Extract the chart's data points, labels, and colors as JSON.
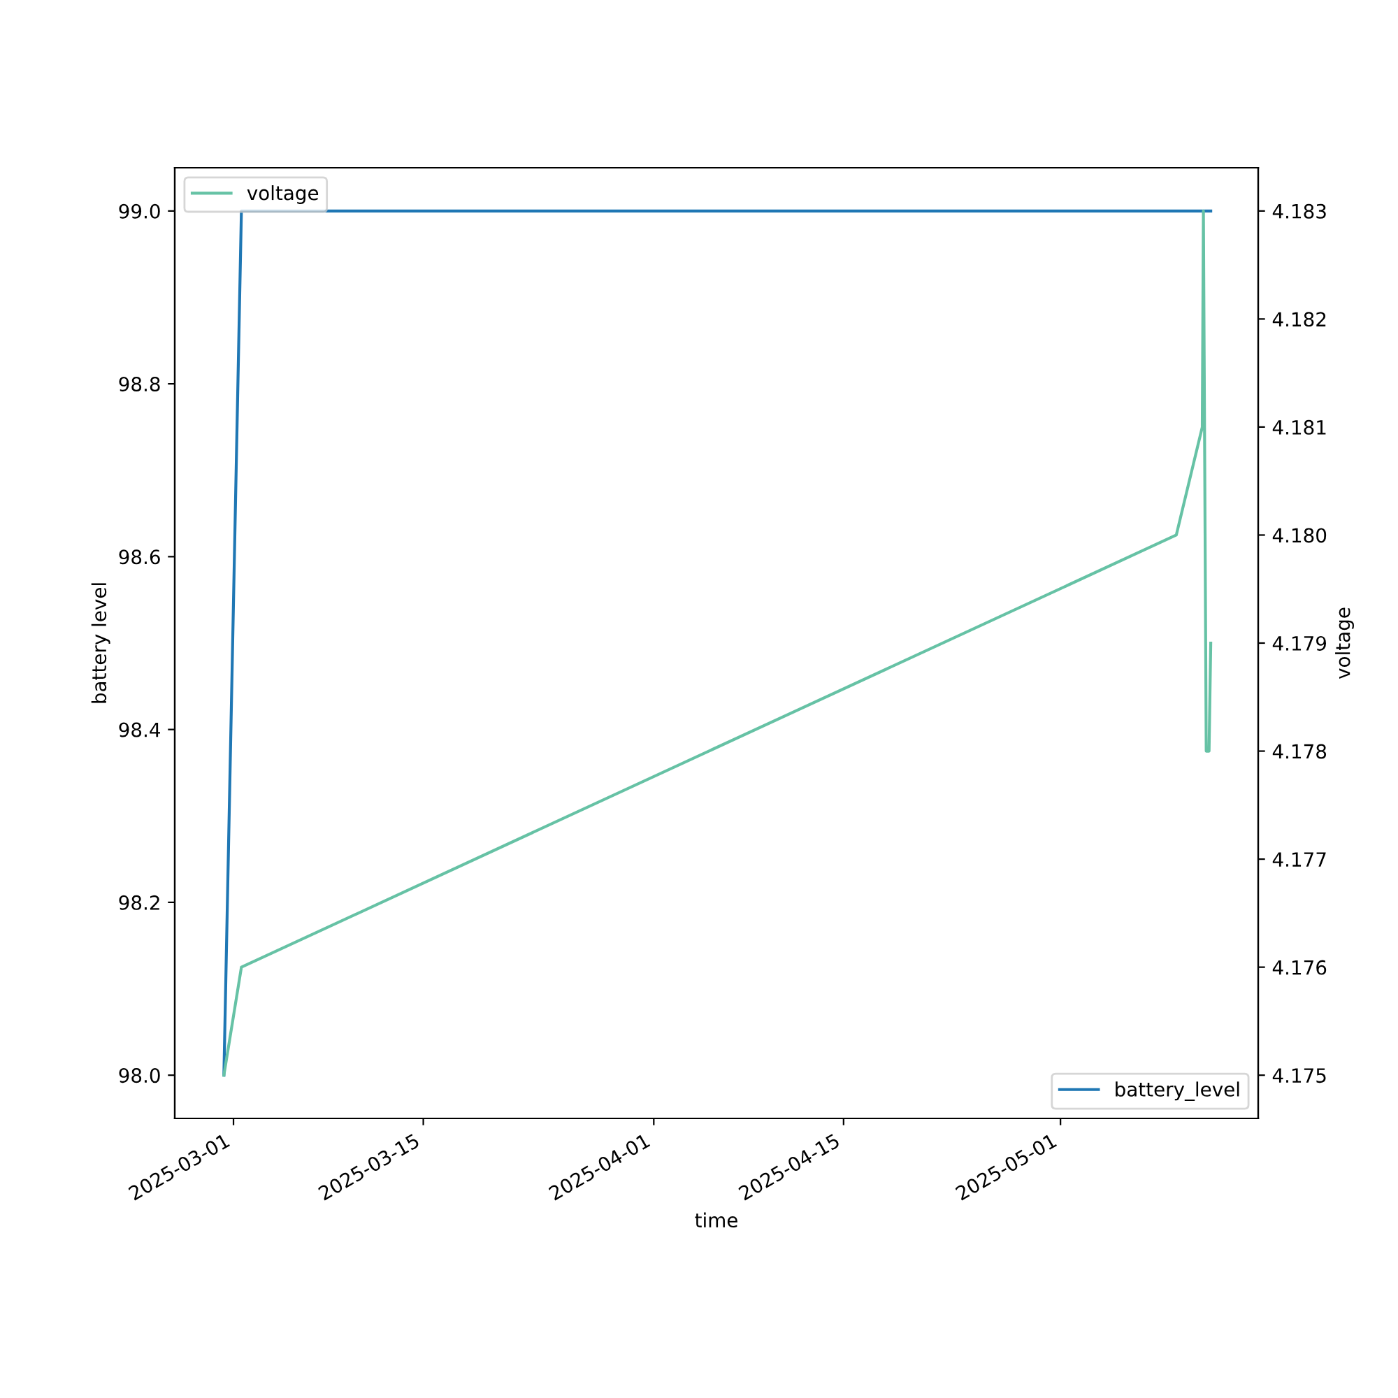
{
  "chart_data": {
    "type": "line",
    "xlabel": "time",
    "ylabel": "battery level",
    "y2label": "voltage",
    "xlim": [
      "2025-02-24T16:00",
      "2025-05-15T14:00"
    ],
    "xticks": [
      "2025-03-01",
      "2025-03-15",
      "2025-04-01",
      "2025-04-15",
      "2025-05-01"
    ],
    "ylim": [
      97.95,
      99.05
    ],
    "yticks": [
      {
        "value": 98.0,
        "label": "98.0"
      },
      {
        "value": 98.2,
        "label": "98.2"
      },
      {
        "value": 98.4,
        "label": "98.4"
      },
      {
        "value": 98.6,
        "label": "98.6"
      },
      {
        "value": 98.8,
        "label": "98.8"
      },
      {
        "value": 99.0,
        "label": "99.0"
      }
    ],
    "y2lim": [
      4.1746,
      4.1834
    ],
    "y2ticks": [
      {
        "value": 4.175,
        "label": "4.175"
      },
      {
        "value": 4.176,
        "label": "4.176"
      },
      {
        "value": 4.177,
        "label": "4.177"
      },
      {
        "value": 4.178,
        "label": "4.178"
      },
      {
        "value": 4.179,
        "label": "4.179"
      },
      {
        "value": 4.18,
        "label": "4.180"
      },
      {
        "value": 4.181,
        "label": "4.181"
      },
      {
        "value": 4.182,
        "label": "4.182"
      },
      {
        "value": 4.183,
        "label": "4.183"
      }
    ],
    "grid": false,
    "legend": "top left",
    "series": [
      {
        "name": "battery_level",
        "color": "#1f77b4",
        "x": [
          "2025-02-28T07:00",
          "2025-03-01T14:00",
          "2025-05-12T02:00"
        ],
        "values": [
          98.0,
          99.0,
          99.0
        ]
      },
      {
        "name": "voltage",
        "color": "#66c2a5",
        "axis": "y2",
        "x": [
          "2025-02-28T07:00",
          "2025-03-01T14:00",
          "2025-05-09T13:00",
          "2025-05-11T11:00",
          "2025-05-11T13:00",
          "2025-05-11T18:00",
          "2025-05-11T23:00",
          "2025-05-12T02:00"
        ],
        "values": [
          4.175,
          4.176,
          4.18,
          4.181,
          4.183,
          4.178,
          4.178,
          4.179
        ]
      }
    ]
  }
}
